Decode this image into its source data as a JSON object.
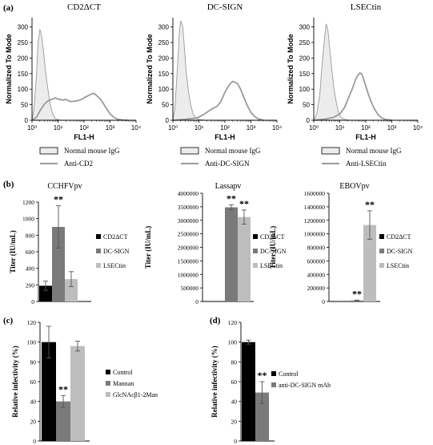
{
  "panel_labels": [
    "(a)",
    "(b)",
    "(c)",
    "(d)"
  ],
  "colors": {
    "black": "#000000",
    "dark_gray": "#7a7a7a",
    "light_gray": "#bdbdbd",
    "hist_fill": "#ececec",
    "hist_line": "#9a9a9a",
    "outline": "#555555"
  },
  "chart_data": [
    {
      "type": "histogram",
      "panel": "(a)",
      "title": "CD2ΔCT",
      "xlabel": "FL1-H",
      "ylabel": "Normalized To Mode",
      "xscale": "log",
      "xlim": [
        1,
        10000
      ],
      "ylim": [
        0,
        300
      ],
      "yticks": [
        0,
        50,
        100,
        150,
        200,
        250,
        300
      ],
      "xticks": [
        "10⁰",
        "10¹",
        "10²",
        "10³",
        "10⁴"
      ],
      "series": [
        {
          "name": "Normal mouse IgG",
          "filled": true,
          "x": [
            1.0,
            1.2,
            1.5,
            1.7,
            2.0,
            2.3,
            2.7,
            3.2,
            3.8,
            4.5,
            5.2,
            6.0,
            7.0,
            8.0,
            9.5,
            11,
            13
          ],
          "y": [
            0,
            40,
            150,
            250,
            292,
            275,
            230,
            170,
            120,
            75,
            45,
            25,
            12,
            5,
            2,
            1,
            0
          ]
        },
        {
          "name": "Anti-CD2",
          "filled": false,
          "x": [
            1.0,
            1.5,
            2.0,
            3.0,
            4.0,
            6.0,
            8.0,
            10,
            15,
            20,
            30,
            50,
            70,
            100,
            150,
            200,
            250,
            300,
            400,
            500,
            700,
            1000,
            1500,
            2000,
            3000,
            5000
          ],
          "y": [
            0,
            10,
            30,
            52,
            62,
            68,
            72,
            68,
            65,
            67,
            60,
            62,
            65,
            72,
            80,
            85,
            86,
            80,
            70,
            60,
            40,
            20,
            8,
            3,
            1,
            0
          ]
        }
      ],
      "legend": [
        "Normal mouse IgG",
        "Anti-CD2"
      ]
    },
    {
      "type": "histogram",
      "panel": "(a)",
      "title": "DC-SIGN",
      "xlabel": "FL1-H",
      "ylabel": "Normalized To Mode",
      "xscale": "log",
      "xlim": [
        1,
        10000
      ],
      "ylim": [
        0,
        300
      ],
      "yticks": [
        0,
        50,
        100,
        150,
        200,
        250,
        300
      ],
      "xticks": [
        "10⁰",
        "10¹",
        "10²",
        "10³",
        "10⁴"
      ],
      "series": [
        {
          "name": "Normal mouse IgG",
          "filled": true,
          "x": [
            1.0,
            1.2,
            1.5,
            1.8,
            2.0,
            2.4,
            2.8,
            3.2,
            4.0,
            5.0,
            6.0,
            7.5,
            9.0,
            11,
            14,
            18
          ],
          "y": [
            0,
            40,
            170,
            290,
            320,
            300,
            230,
            160,
            90,
            45,
            20,
            8,
            4,
            2,
            1,
            0
          ]
        },
        {
          "name": "Anti-DC-SIGN",
          "filled": false,
          "x": [
            1.0,
            3.0,
            6.0,
            10,
            15,
            20,
            30,
            50,
            70,
            100,
            150,
            200,
            250,
            300,
            400,
            500,
            700,
            1000,
            1500,
            2000,
            3000
          ],
          "y": [
            0,
            3,
            6,
            10,
            18,
            25,
            35,
            45,
            60,
            90,
            115,
            125,
            122,
            118,
            100,
            80,
            50,
            25,
            10,
            4,
            0
          ]
        }
      ],
      "legend": [
        "Normal mouse IgG",
        "Anti-DC-SIGN"
      ]
    },
    {
      "type": "histogram",
      "panel": "(a)",
      "title": "LSECtin",
      "xlabel": "FL1-H",
      "ylabel": "Normalized To Mode",
      "xscale": "log",
      "xlim": [
        1,
        10000
      ],
      "ylim": [
        0,
        300
      ],
      "yticks": [
        0,
        50,
        100,
        150,
        200,
        250,
        300
      ],
      "xticks": [
        "10⁰",
        "10¹",
        "10²",
        "10³",
        "10⁴"
      ],
      "series": [
        {
          "name": "Normal mouse IgG",
          "filled": true,
          "x": [
            1.0,
            1.3,
            1.7,
            2.0,
            2.5,
            3.0,
            3.5,
            4.0,
            5.0,
            6.0,
            7.5,
            9.0,
            11,
            14,
            18,
            25
          ],
          "y": [
            0,
            20,
            80,
            160,
            250,
            310,
            290,
            240,
            160,
            100,
            55,
            25,
            10,
            4,
            1,
            0
          ]
        },
        {
          "name": "Anti-LSECtin",
          "filled": false,
          "x": [
            1.0,
            3.0,
            6.0,
            10,
            15,
            20,
            30,
            40,
            50,
            60,
            70,
            80,
            100,
            130,
            170,
            220,
            300,
            400,
            600,
            1000
          ],
          "y": [
            0,
            4,
            10,
            20,
            40,
            65,
            100,
            130,
            145,
            152,
            148,
            135,
            110,
            80,
            55,
            35,
            18,
            8,
            2,
            0
          ]
        }
      ],
      "legend": [
        "Normal mouse IgG",
        "Anti-LSECtin"
      ]
    },
    {
      "type": "bar",
      "panel": "(b)",
      "title": "CCHFVpv",
      "ylabel": "Titer (IU/mL)",
      "ylim": [
        0,
        1200
      ],
      "yticks": [
        0,
        200,
        400,
        600,
        800,
        1000,
        1200
      ],
      "categories": [
        "CD2ΔCT",
        "DC-SIGN",
        "LSECtin"
      ],
      "values": [
        190,
        900,
        270
      ],
      "errors": [
        55,
        255,
        90
      ],
      "significance": [
        "",
        "**",
        ""
      ]
    },
    {
      "type": "bar",
      "panel": "(b)",
      "title": "Lassapv",
      "ylabel": "Titer (IU/mL)",
      "ylim": [
        0,
        4000000
      ],
      "yticks": [
        0,
        500000,
        1000000,
        1500000,
        2000000,
        2500000,
        3000000,
        3500000,
        4000000
      ],
      "categories": [
        "CD2ΔCT",
        "DC-SIGN",
        "LSECtin"
      ],
      "values": [
        10000,
        3480000,
        3120000
      ],
      "errors": [
        0,
        90000,
        260000
      ],
      "significance": [
        "",
        "**",
        "**"
      ]
    },
    {
      "type": "bar",
      "panel": "(b)",
      "title": "EBOVpv",
      "ylabel": "Titer (IU/mL)",
      "ylim": [
        0,
        1600000
      ],
      "yticks": [
        0,
        200000,
        400000,
        600000,
        800000,
        1000000,
        1200000,
        1400000,
        1600000
      ],
      "categories": [
        "CD2ΔCT",
        "DC-SIGN",
        "LSECtin"
      ],
      "values": [
        2000,
        15000,
        1130000
      ],
      "errors": [
        0,
        5000,
        210000
      ],
      "significance": [
        "",
        "**",
        "**"
      ]
    },
    {
      "type": "bar",
      "panel": "(c)",
      "ylabel": "Relative infectivity (%)",
      "ylim": [
        0,
        120
      ],
      "yticks": [
        0,
        20,
        40,
        60,
        80,
        100,
        120
      ],
      "categories": [
        "Control",
        "Mannan",
        "GlcNAcβ1-2Man"
      ],
      "values": [
        100,
        40,
        96
      ],
      "errors": [
        16,
        6,
        5
      ],
      "significance": [
        "",
        "**",
        ""
      ]
    },
    {
      "type": "bar",
      "panel": "(d)",
      "ylabel": "Relative infectivity (%)",
      "ylim": [
        0,
        120
      ],
      "yticks": [
        0,
        20,
        40,
        60,
        80,
        100,
        120
      ],
      "categories": [
        "Control",
        "anti-DC-SIGN mAb"
      ],
      "values": [
        100,
        49
      ],
      "errors": [
        2,
        11
      ],
      "significance": [
        "",
        "**"
      ]
    }
  ]
}
